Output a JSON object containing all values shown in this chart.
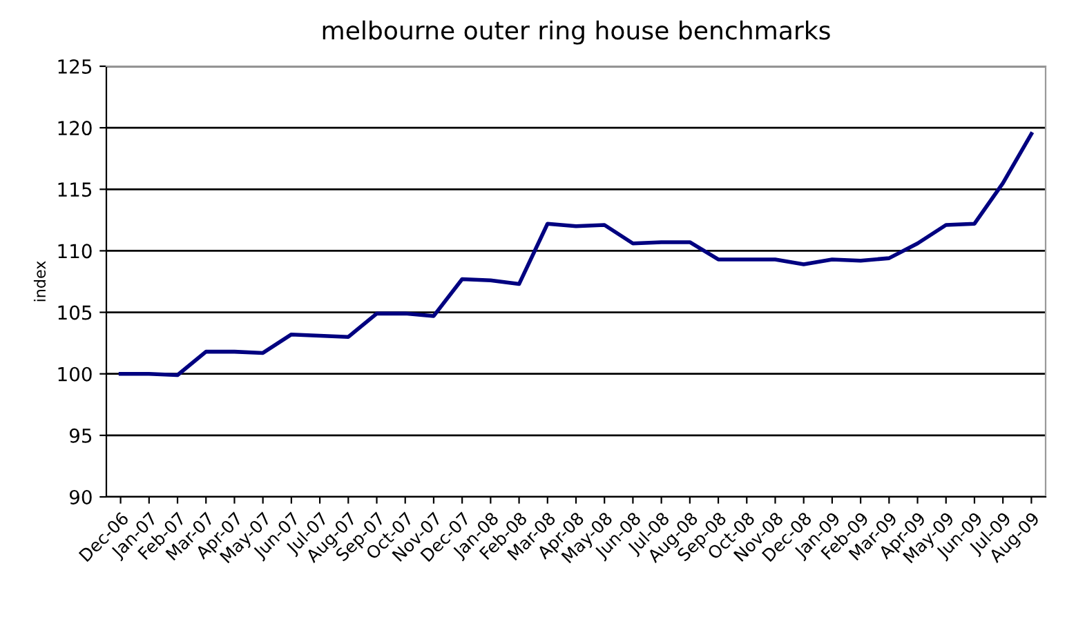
{
  "chart_data": {
    "type": "line",
    "title": "melbourne outer ring house benchmarks",
    "ylabel": "index",
    "categories": [
      "Dec-06",
      "Jan-07",
      "Feb-07",
      "Mar-07",
      "Apr-07",
      "May-07",
      "Jun-07",
      "Jul-07",
      "Aug-07",
      "Sep-07",
      "Oct-07",
      "Nov-07",
      "Dec-07",
      "Jan-08",
      "Feb-08",
      "Mar-08",
      "Apr-08",
      "May-08",
      "Jun-08",
      "Jul-08",
      "Aug-08",
      "Sep-08",
      "Oct-08",
      "Nov-08",
      "Dec-08",
      "Jan-09",
      "Feb-09",
      "Mar-09",
      "Apr-09",
      "May-09",
      "Jun-09",
      "Jul-09",
      "Aug-09"
    ],
    "series": [
      {
        "color": "#000080",
        "values": [
          100,
          100,
          99.9,
          101.8,
          101.8,
          101.7,
          103.2,
          103.1,
          103.0,
          104.9,
          104.9,
          104.7,
          107.7,
          107.6,
          107.3,
          112.2,
          112.0,
          112.1,
          110.6,
          110.7,
          110.7,
          109.3,
          109.3,
          109.3,
          108.9,
          109.3,
          109.2,
          109.4,
          110.6,
          112.1,
          112.2,
          115.5,
          119.5
        ]
      }
    ],
    "ylim": [
      90,
      125
    ],
    "yticks": [
      90,
      95,
      100,
      105,
      110,
      115,
      120,
      125
    ],
    "grid": "y",
    "legend": false,
    "marker": "none",
    "line_style": "solid"
  }
}
